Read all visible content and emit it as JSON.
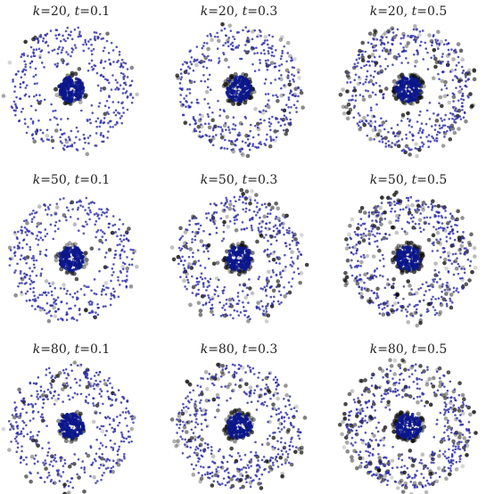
{
  "panels": [
    {
      "title": [
        "k",
        "=20, ",
        "t",
        "=0.1"
      ]
    },
    {
      "title": [
        "k",
        "=20, ",
        "t",
        "=0.3"
      ]
    },
    {
      "title": [
        "k",
        "=20, ",
        "t",
        "=0.5"
      ]
    },
    {
      "title": [
        "k",
        "=50, ",
        "t",
        "=0.1"
      ]
    },
    {
      "title": [
        "k",
        "=50, ",
        "t",
        "=0.3"
      ]
    },
    {
      "title": [
        "k",
        "=50, ",
        "t",
        "=0.5"
      ]
    },
    {
      "title": [
        "k",
        "=80, ",
        "t",
        "=0.1"
      ]
    },
    {
      "title": [
        "k",
        "=80, ",
        "t",
        "=0.3"
      ]
    },
    {
      "title": [
        "k",
        "=80, ",
        "t",
        "=0.5"
      ]
    }
  ]
}
